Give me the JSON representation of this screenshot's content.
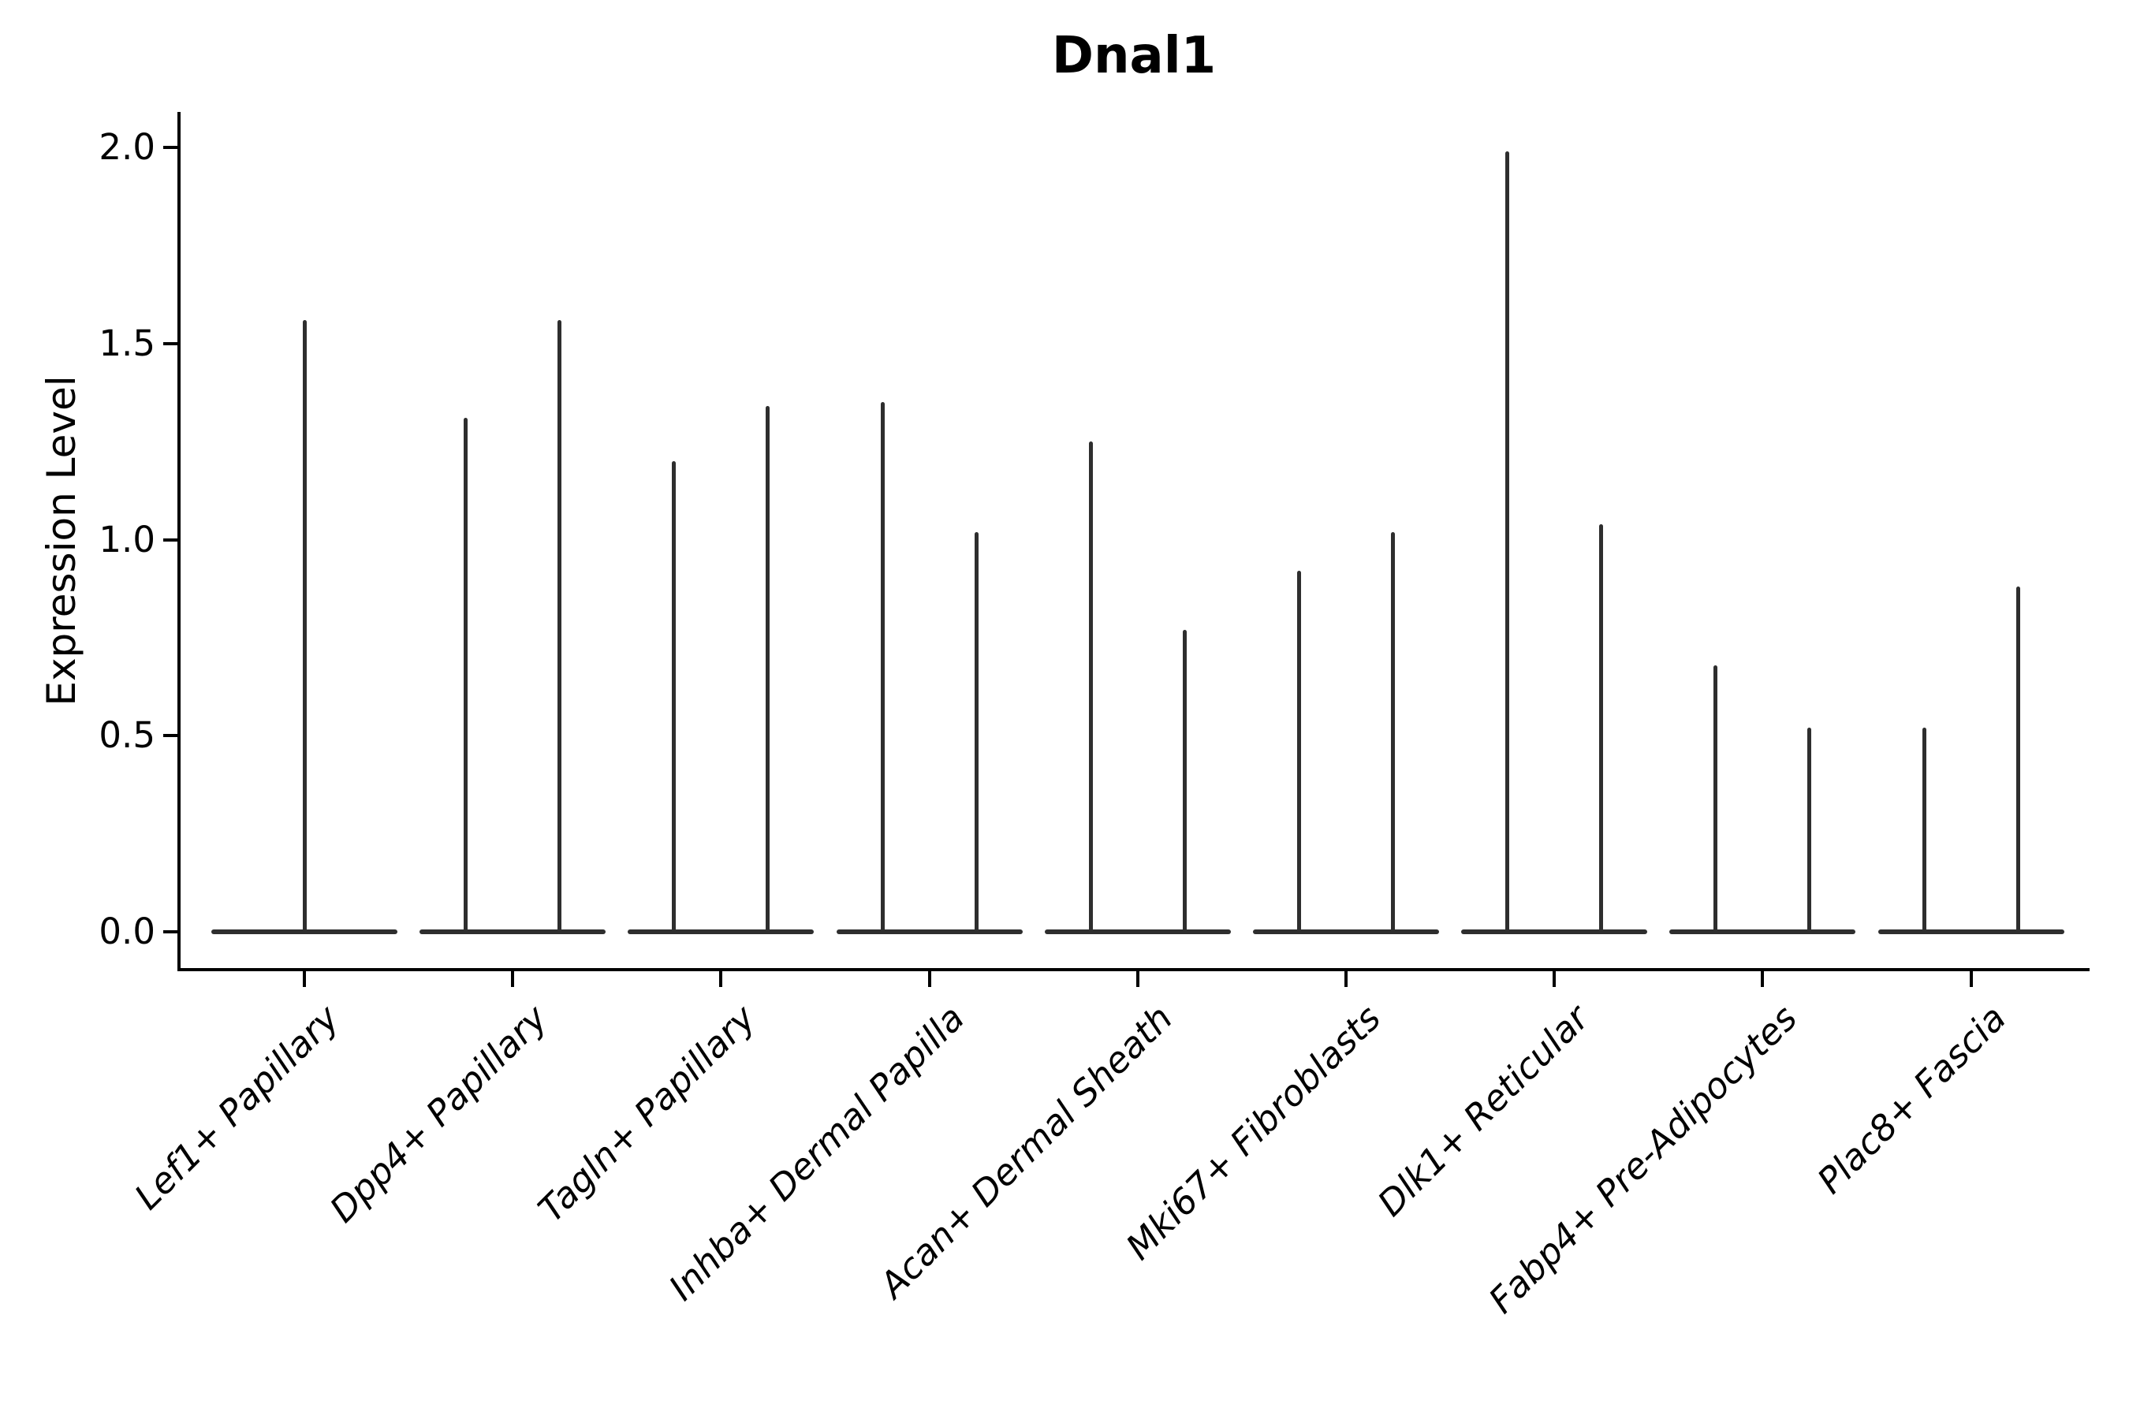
{
  "chart_data": {
    "type": "violin",
    "title": "Dnal1",
    "ylabel": "Expression Level",
    "xlabel": "",
    "ylim": [
      -0.1,
      2.09
    ],
    "grid": false,
    "legend": null,
    "yticks": [
      {
        "label": "0.0",
        "value": 0.0
      },
      {
        "label": "0.5",
        "value": 0.5
      },
      {
        "label": "1.0",
        "value": 1.0
      },
      {
        "label": "1.5",
        "value": 1.5
      },
      {
        "label": "2.0",
        "value": 2.0
      }
    ],
    "categories": [
      "Lef1+ Papillary",
      "Dpp4+ Papillary",
      "Tagln+ Papillary",
      "Inhba+ Dermal Papilla",
      "Acan+ Dermal Sheath",
      "Mki67+ Fibroblasts",
      "Dlk1+ Reticular",
      "Fabp4+ Pre-Adipocytes",
      "Plac8+ Fascia"
    ],
    "violins": [
      {
        "category": "Lef1+ Papillary",
        "max_expression": 1.56,
        "needles": [
          {
            "offset": 0.0,
            "value": 1.56
          }
        ]
      },
      {
        "category": "Dpp4+ Papillary",
        "max_expression": 1.56,
        "needles": [
          {
            "offset": -0.225,
            "value": 1.31
          },
          {
            "offset": 0.225,
            "value": 1.56
          }
        ]
      },
      {
        "category": "Tagln+ Papillary",
        "max_expression": 1.34,
        "needles": [
          {
            "offset": -0.225,
            "value": 1.2
          },
          {
            "offset": 0.225,
            "value": 1.34
          }
        ]
      },
      {
        "category": "Inhba+ Dermal Papilla",
        "max_expression": 1.35,
        "needles": [
          {
            "offset": -0.225,
            "value": 1.35
          },
          {
            "offset": 0.225,
            "value": 1.02
          }
        ]
      },
      {
        "category": "Acan+ Dermal Sheath",
        "max_expression": 1.25,
        "needles": [
          {
            "offset": -0.225,
            "value": 1.25
          },
          {
            "offset": 0.225,
            "value": 0.77
          }
        ]
      },
      {
        "category": "Mki67+ Fibroblasts",
        "max_expression": 1.02,
        "needles": [
          {
            "offset": -0.225,
            "value": 0.92
          },
          {
            "offset": 0.225,
            "value": 1.02
          }
        ]
      },
      {
        "category": "Dlk1+ Reticular",
        "max_expression": 1.99,
        "needles": [
          {
            "offset": -0.225,
            "value": 1.99
          },
          {
            "offset": 0.225,
            "value": 1.04
          }
        ]
      },
      {
        "category": "Fabp4+ Pre-Adipocytes",
        "max_expression": 0.68,
        "needles": [
          {
            "offset": -0.225,
            "value": 0.68
          },
          {
            "offset": 0.225,
            "value": 0.52
          }
        ]
      },
      {
        "category": "Plac8+ Fascia",
        "max_expression": 0.88,
        "needles": [
          {
            "offset": -0.225,
            "value": 0.52
          },
          {
            "offset": 0.225,
            "value": 0.88
          }
        ]
      }
    ],
    "colors": {
      "violin": "#2e2e2e",
      "axis": "#000000",
      "text": "#000000",
      "background": "#ffffff"
    },
    "style": {
      "x_tick_label_rotation_deg": 45,
      "x_tick_label_style": "italic",
      "title_bold": true,
      "spines": [
        "left",
        "bottom"
      ]
    }
  }
}
